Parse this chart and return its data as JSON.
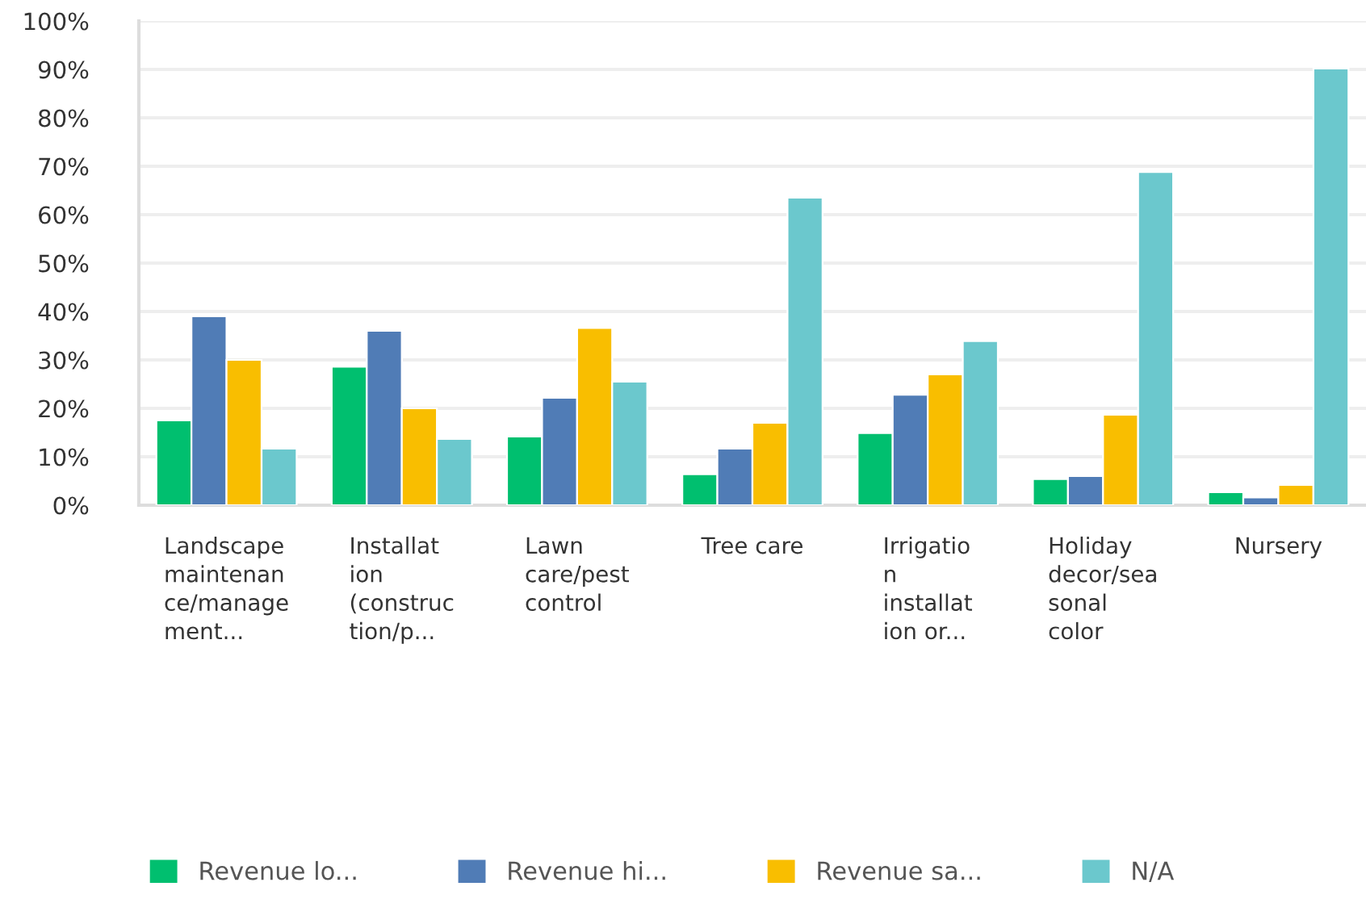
{
  "chart_data": {
    "type": "bar",
    "categories": [
      "Landscape\nmaintenan\nce/manage\nment...",
      "Installat\nion\n(construc\ntion/p...",
      "Lawn\ncare/pest\ncontrol",
      "Tree care",
      "Irrigatio\nn\ninstallat\nion or...",
      "Holiday\ndecor/sea\nsonal\ncolor",
      "Nursery"
    ],
    "series": [
      {
        "name": "Revenue lo...",
        "color": "#00bf6f",
        "values": [
          17.5,
          28.6,
          14.2,
          6.4,
          14.9,
          5.4,
          2.7
        ]
      },
      {
        "name": "Revenue hi...",
        "color": "#507cb6",
        "values": [
          39,
          36,
          22.2,
          11.7,
          22.8,
          6,
          1.6
        ]
      },
      {
        "name": "Revenue sa...",
        "color": "#f9be00",
        "values": [
          30,
          20,
          36.6,
          17,
          27,
          18.7,
          4.2
        ]
      },
      {
        "name": "N/A",
        "color": "#6bc8cd",
        "values": [
          11.7,
          13.7,
          25.5,
          63.5,
          33.9,
          68.8,
          90.2
        ]
      }
    ],
    "ylim": [
      0,
      100
    ],
    "yticks": [
      {
        "value": 0,
        "label": "0%"
      },
      {
        "value": 10,
        "label": "10%"
      },
      {
        "value": 20,
        "label": "20%"
      },
      {
        "value": 30,
        "label": "30%"
      },
      {
        "value": 40,
        "label": "40%"
      },
      {
        "value": 50,
        "label": "50%"
      },
      {
        "value": 60,
        "label": "60%"
      },
      {
        "value": 70,
        "label": "70%"
      },
      {
        "value": 80,
        "label": "80%"
      },
      {
        "value": 90,
        "label": "90%"
      },
      {
        "value": 100,
        "label": "100%"
      }
    ],
    "grid": "y",
    "legend": "bottom left"
  }
}
